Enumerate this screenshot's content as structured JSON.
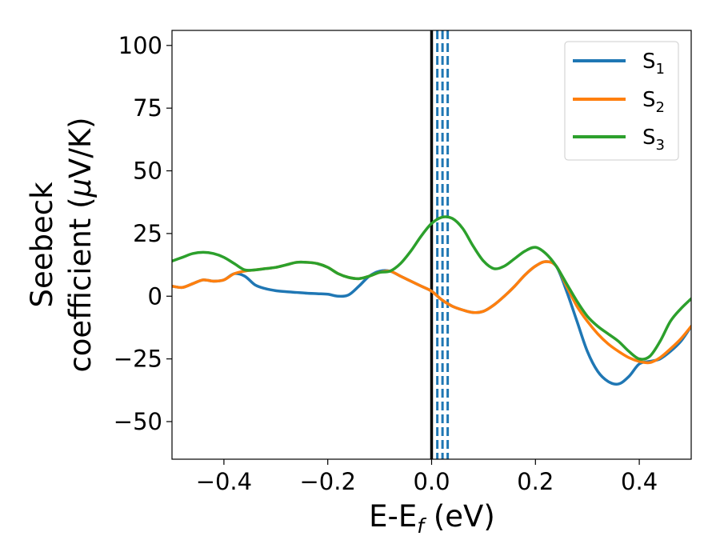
{
  "chart_data": {
    "type": "line",
    "xlabel": "E-E",
    "xlabel_sub": "f",
    "xlabel_unit": " (eV)",
    "ylabel_line1": "Seebeck",
    "ylabel_line2": "coefficient  (",
    "ylabel_mu": "μ",
    "ylabel_unit": "V/K)",
    "xlim": [
      -0.5,
      0.5
    ],
    "ylim": [
      -65,
      106
    ],
    "xticks": [
      -0.4,
      -0.2,
      0.0,
      0.2,
      0.4
    ],
    "xtick_labels": [
      "−0.4",
      "−0.2",
      "0.0",
      "0.2",
      "0.4"
    ],
    "yticks": [
      -50,
      -25,
      0,
      25,
      50,
      75,
      100
    ],
    "ytick_labels": [
      "−50",
      "−25",
      "0",
      "25",
      "50",
      "75",
      "100"
    ],
    "grid": false,
    "legend_position": "top-right",
    "vlines": [
      {
        "x": 0.0,
        "style": "solid",
        "color": "#000000"
      },
      {
        "x": 0.011,
        "style": "dashed",
        "color": "#1f77b4"
      },
      {
        "x": 0.021,
        "style": "dashed",
        "color": "#1f77b4"
      },
      {
        "x": 0.031,
        "style": "dashed",
        "color": "#1f77b4"
      }
    ],
    "series": [
      {
        "name": "S",
        "name_sub": "1",
        "color": "#1f77b4",
        "x": [
          -0.5,
          -0.48,
          -0.46,
          -0.44,
          -0.42,
          -0.4,
          -0.38,
          -0.36,
          -0.34,
          -0.32,
          -0.3,
          -0.28,
          -0.26,
          -0.24,
          -0.22,
          -0.2,
          -0.18,
          -0.16,
          -0.14,
          -0.12,
          -0.1,
          -0.08,
          -0.06,
          -0.04,
          -0.02,
          0.0,
          0.02,
          0.04,
          0.06,
          0.08,
          0.1,
          0.12,
          0.14,
          0.16,
          0.18,
          0.2,
          0.22,
          0.24,
          0.26,
          0.28,
          0.3,
          0.32,
          0.34,
          0.36,
          0.38,
          0.4,
          0.42,
          0.44,
          0.46,
          0.48,
          0.5
        ],
        "y": [
          4,
          3.5,
          5,
          6.5,
          6,
          6.5,
          9,
          8,
          4.5,
          3,
          2.2,
          1.8,
          1.5,
          1.2,
          1,
          0.8,
          0,
          0.5,
          4,
          8,
          10,
          10,
          8,
          6,
          4,
          2,
          -1.5,
          -4,
          -5.5,
          -6.5,
          -6,
          -3.5,
          0,
          4,
          8.5,
          12,
          13.8,
          12,
          2,
          -10,
          -22,
          -30,
          -34,
          -35,
          -32,
          -27,
          -26,
          -25,
          -22,
          -18,
          -12
        ]
      },
      {
        "name": "S",
        "name_sub": "2",
        "color": "#ff7f0e",
        "x": [
          -0.5,
          -0.48,
          -0.46,
          -0.44,
          -0.42,
          -0.4,
          -0.38,
          -0.36,
          -0.34,
          -0.32,
          -0.3,
          -0.28,
          -0.26,
          -0.24,
          -0.22,
          -0.2,
          -0.18,
          -0.16,
          -0.14,
          -0.12,
          -0.1,
          -0.08,
          -0.06,
          -0.04,
          -0.02,
          0.0,
          0.02,
          0.04,
          0.06,
          0.08,
          0.1,
          0.12,
          0.14,
          0.16,
          0.18,
          0.2,
          0.22,
          0.24,
          0.26,
          0.28,
          0.3,
          0.32,
          0.34,
          0.36,
          0.38,
          0.4,
          0.42,
          0.44,
          0.46,
          0.48,
          0.5
        ],
        "y": [
          4,
          3.5,
          5,
          6.5,
          6,
          6.5,
          9,
          10,
          10.5,
          11,
          11.5,
          12.5,
          13.5,
          13.5,
          13,
          11.5,
          9,
          7.5,
          7,
          8,
          9.5,
          10,
          8,
          6,
          4,
          2,
          -1.5,
          -4,
          -5.5,
          -6.5,
          -6,
          -3.5,
          0,
          4,
          8.5,
          12,
          13.8,
          12,
          4,
          -4,
          -10,
          -15,
          -19,
          -22,
          -24.5,
          -26,
          -26.5,
          -24.5,
          -21,
          -17,
          -12
        ]
      },
      {
        "name": "S",
        "name_sub": "3",
        "color": "#2ca02c",
        "x": [
          -0.5,
          -0.48,
          -0.46,
          -0.44,
          -0.42,
          -0.4,
          -0.38,
          -0.36,
          -0.34,
          -0.32,
          -0.3,
          -0.28,
          -0.26,
          -0.24,
          -0.22,
          -0.2,
          -0.18,
          -0.16,
          -0.14,
          -0.12,
          -0.1,
          -0.08,
          -0.06,
          -0.04,
          -0.02,
          0.0,
          0.02,
          0.04,
          0.06,
          0.08,
          0.1,
          0.12,
          0.14,
          0.16,
          0.18,
          0.2,
          0.22,
          0.24,
          0.26,
          0.28,
          0.3,
          0.32,
          0.34,
          0.36,
          0.38,
          0.4,
          0.42,
          0.44,
          0.46,
          0.48,
          0.5
        ],
        "y": [
          14,
          15.5,
          17,
          17.5,
          17,
          15.5,
          13,
          10.5,
          10.5,
          11,
          11.5,
          12.5,
          13.5,
          13.5,
          13,
          11.5,
          9,
          7.5,
          7,
          8,
          9.5,
          10,
          13,
          18,
          24,
          29,
          31.5,
          31,
          27,
          20,
          14,
          11,
          12,
          15,
          18,
          19.5,
          17,
          12,
          5,
          -2,
          -8,
          -12,
          -15,
          -18,
          -22,
          -25,
          -24,
          -18,
          -10,
          -5,
          -1
        ]
      }
    ]
  }
}
